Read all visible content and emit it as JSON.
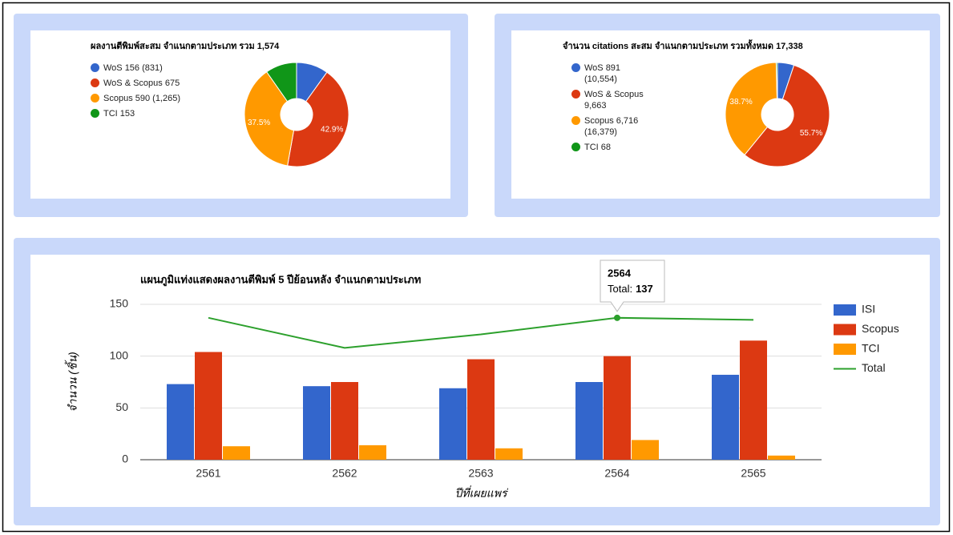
{
  "chart_data": [
    {
      "type": "donut",
      "title": "ผลงานตีพิมพ์สะสม จำแนกตามประเภท รวม 1,574",
      "categories": [
        "WoS 156 (831)",
        "WoS & Scopus 675",
        "Scopus 590 (1,265)",
        "TCI 153"
      ],
      "values": [
        156,
        675,
        590,
        153
      ],
      "value_labels": [
        null,
        "42.9%",
        "37.5%",
        null
      ],
      "colors": [
        "#3366cc",
        "#dc3912",
        "#ff9900",
        "#109618"
      ]
    },
    {
      "type": "donut",
      "title": "จำนวน citations สะสม จำแนกตามประเภท รวมทั้งหมด 17,338",
      "categories": [
        "WoS 891 (10,554)",
        "WoS & Scopus 9,663",
        "Scopus 6,716 (16,379)",
        "TCI 68"
      ],
      "values": [
        891,
        9663,
        6716,
        68
      ],
      "value_labels": [
        null,
        "55.7%",
        "38.7%",
        null
      ],
      "colors": [
        "#3366cc",
        "#dc3912",
        "#ff9900",
        "#109618"
      ]
    },
    {
      "type": "bar",
      "title": "แผนภูมิแท่งแสดงผลงานตีพิมพ์ 5 ปีย้อนหลัง จำแนกตามประเภท",
      "ylabel": "จำนวน (ชิ้น)",
      "xlabel": "ปีที่เผยแพร่",
      "categories": [
        "2561",
        "2562",
        "2563",
        "2564",
        "2565"
      ],
      "series": [
        {
          "name": "ISI",
          "color": "#3366cc",
          "values": [
            73,
            71,
            69,
            75,
            82
          ]
        },
        {
          "name": "Scopus",
          "color": "#dc3912",
          "values": [
            104,
            75,
            97,
            100,
            115
          ]
        },
        {
          "name": "TCI",
          "color": "#ff9900",
          "values": [
            13,
            14,
            11,
            19,
            4
          ]
        },
        {
          "name": "Total",
          "color": "#2ca02c",
          "type": "line",
          "values": [
            137,
            108,
            121,
            137,
            135
          ]
        }
      ],
      "ylim": [
        0,
        150
      ],
      "yticks": [
        0,
        50,
        100,
        150
      ],
      "grid": true,
      "legend": "right",
      "tooltip": {
        "label": "Total:"
      }
    }
  ]
}
